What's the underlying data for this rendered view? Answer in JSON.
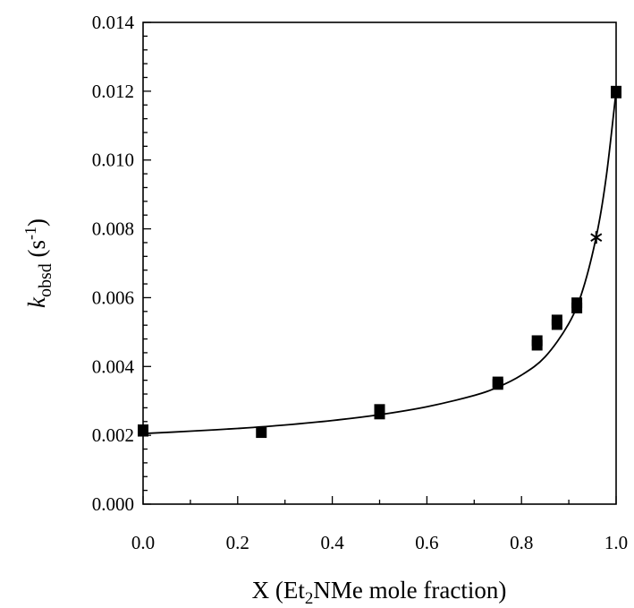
{
  "chart_data": {
    "type": "scatter",
    "title": "",
    "xlabel": {
      "prefix": "X (Et",
      "sub": "2",
      "suffix": "NMe mole fraction)"
    },
    "ylabel": {
      "symbol": "k",
      "sub": "obsd",
      "unit_prefix": " (s",
      "sup": "-1",
      "unit_suffix": ")"
    },
    "xlim": [
      0,
      1
    ],
    "ylim": [
      0,
      0.014
    ],
    "x_ticks": [
      "0.0",
      "0.2",
      "0.4",
      "0.6",
      "0.8",
      "1.0"
    ],
    "x_tick_values": [
      0,
      0.2,
      0.4,
      0.6,
      0.8,
      1.0
    ],
    "y_ticks": [
      "0.000",
      "0.002",
      "0.004",
      "0.006",
      "0.008",
      "0.010",
      "0.012",
      "0.014"
    ],
    "y_tick_values": [
      0,
      0.002,
      0.004,
      0.006,
      0.008,
      0.01,
      0.012,
      0.014
    ],
    "grid": false,
    "legend": "none",
    "series": [
      {
        "marker": "filled-square",
        "points": [
          {
            "x": 0.0,
            "y": 0.00212
          },
          {
            "x": 0.0,
            "y": 0.00216
          },
          {
            "x": 0.25,
            "y": 0.00208
          },
          {
            "x": 0.5,
            "y": 0.00262
          },
          {
            "x": 0.5,
            "y": 0.00275
          },
          {
            "x": 0.75,
            "y": 0.00348
          },
          {
            "x": 0.75,
            "y": 0.00355
          },
          {
            "x": 0.833,
            "y": 0.00462
          },
          {
            "x": 0.833,
            "y": 0.00475
          },
          {
            "x": 0.875,
            "y": 0.00522
          },
          {
            "x": 0.875,
            "y": 0.00535
          },
          {
            "x": 0.917,
            "y": 0.0057
          },
          {
            "x": 0.917,
            "y": 0.00585
          },
          {
            "x": 1.0,
            "y": 0.01195
          },
          {
            "x": 1.0,
            "y": 0.012
          }
        ]
      },
      {
        "marker": "asterisk",
        "points": [
          {
            "x": 0.958,
            "y": 0.00775
          }
        ]
      }
    ],
    "fit_curve": {
      "type": "line",
      "x": [
        0.0,
        0.1,
        0.2,
        0.3,
        0.4,
        0.5,
        0.6,
        0.7,
        0.75,
        0.8,
        0.85,
        0.9,
        0.93,
        0.96,
        0.98,
        1.0
      ],
      "y": [
        0.00205,
        0.00212,
        0.0022,
        0.0023,
        0.00243,
        0.0026,
        0.00283,
        0.00316,
        0.0034,
        0.00375,
        0.00428,
        0.00525,
        0.00625,
        0.0079,
        0.0096,
        0.012
      ]
    }
  }
}
